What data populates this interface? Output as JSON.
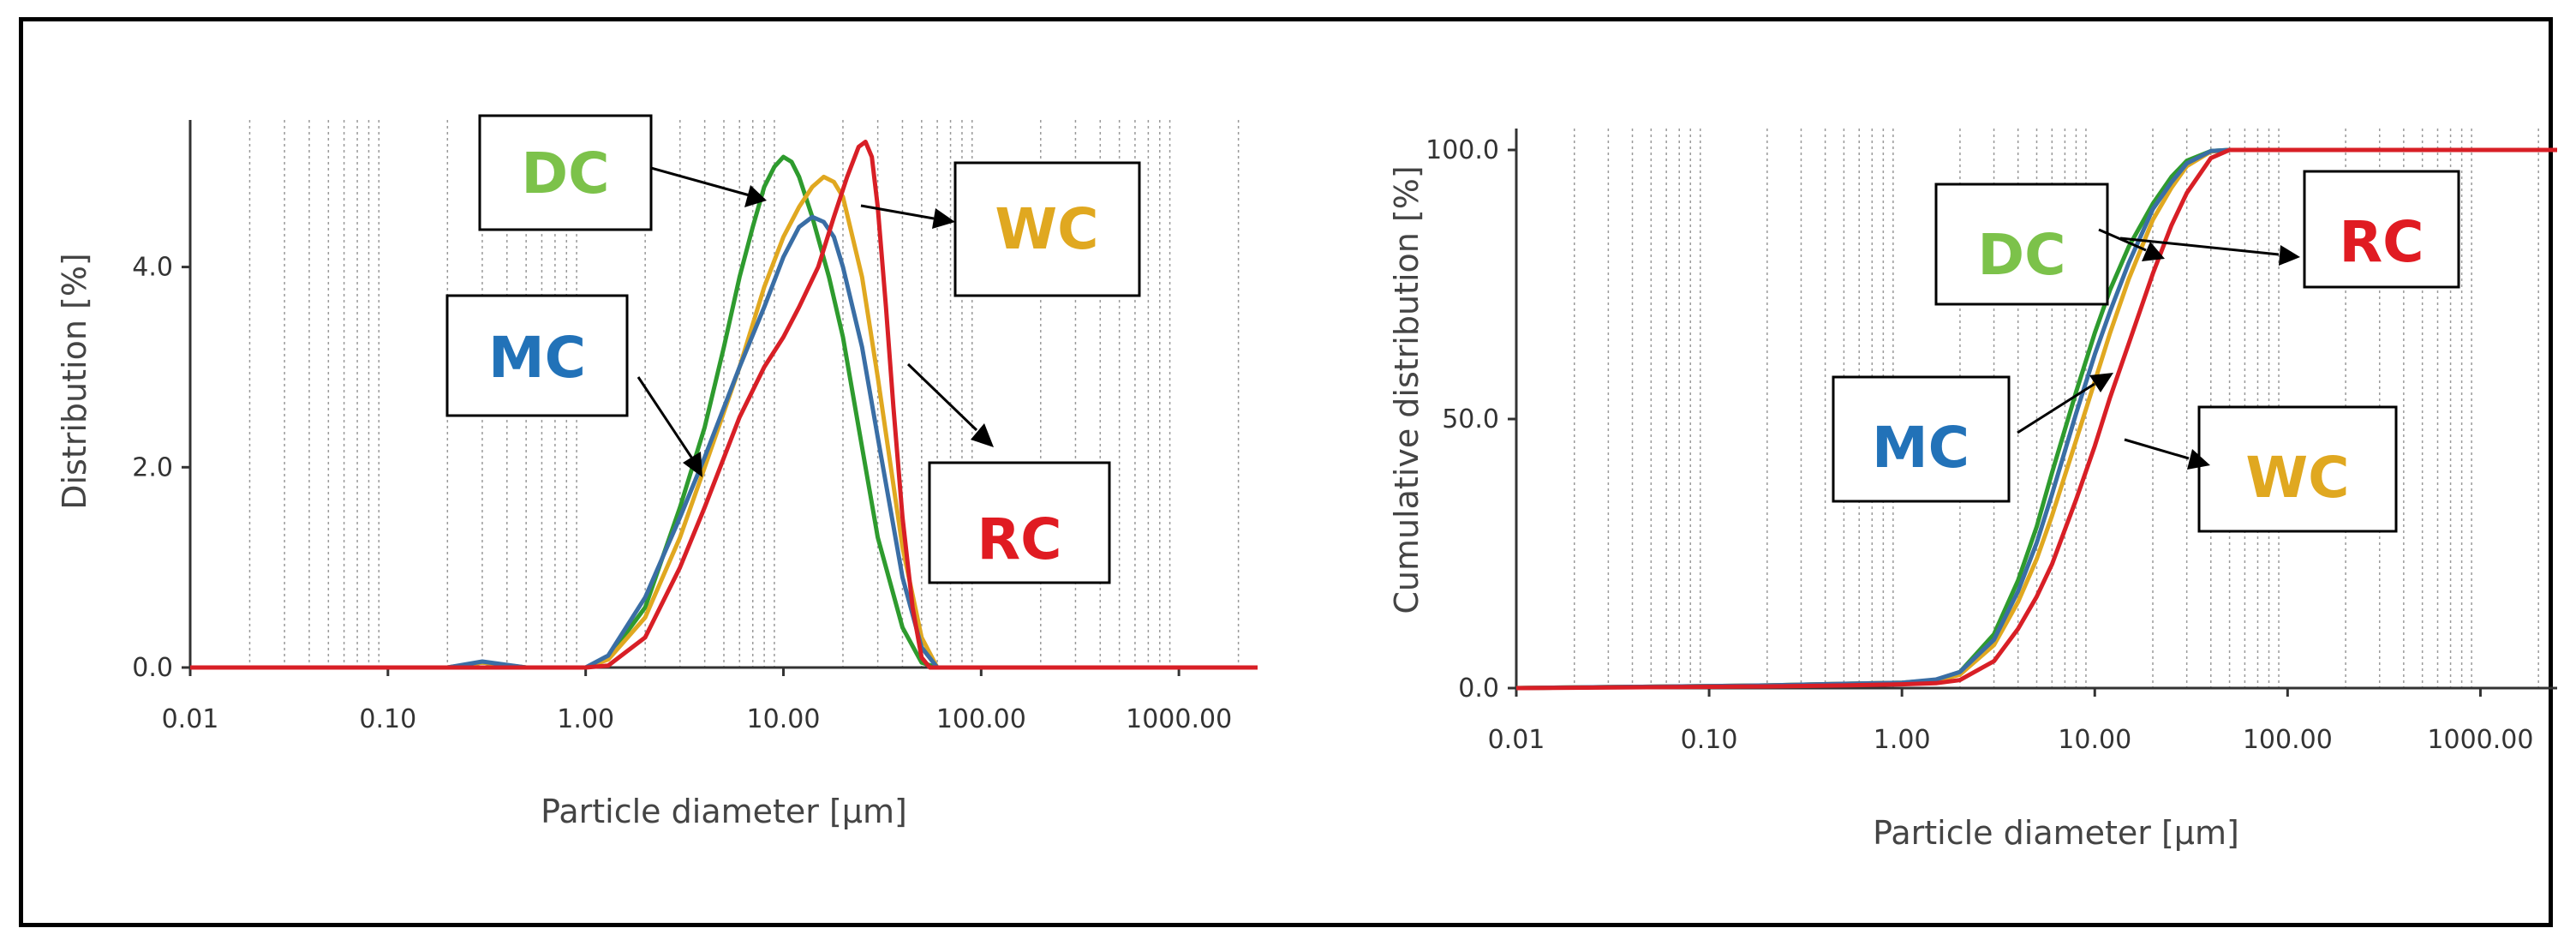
{
  "chart_data": [
    {
      "type": "line",
      "name": "distribution",
      "xscale": "log",
      "xlim": [
        0.01,
        2500
      ],
      "ylim": [
        0,
        5.4
      ],
      "xlabel": "Particle diameter [µm]",
      "ylabel": "Distribution [%]",
      "x_ticks": [
        {
          "value": 0.01,
          "label": "0.01"
        },
        {
          "value": 0.1,
          "label": "0.10"
        },
        {
          "value": 1,
          "label": "1.00"
        },
        {
          "value": 10,
          "label": "10.00"
        },
        {
          "value": 100,
          "label": "100.00"
        },
        {
          "value": 1000,
          "label": "1000.00"
        }
      ],
      "y_ticks": [
        {
          "value": 0,
          "label": "0.0"
        },
        {
          "value": 2,
          "label": "2.0"
        },
        {
          "value": 4,
          "label": "4.0"
        }
      ],
      "series": [
        {
          "name": "DC",
          "color": "#2e9b2e",
          "x": [
            0.01,
            0.2,
            0.3,
            0.5,
            1.0,
            1.3,
            2.0,
            3.0,
            4.0,
            5.0,
            6.0,
            7.0,
            8.0,
            9.0,
            10.0,
            11.0,
            12.0,
            14.0,
            17.0,
            20.0,
            25.0,
            30.0,
            40.0,
            50.0,
            60.0,
            2500
          ],
          "y": [
            0,
            0,
            0.05,
            0,
            0,
            0.1,
            0.6,
            1.6,
            2.4,
            3.2,
            3.9,
            4.4,
            4.8,
            5.0,
            5.1,
            5.05,
            4.9,
            4.5,
            3.9,
            3.3,
            2.2,
            1.3,
            0.4,
            0.05,
            0,
            0
          ]
        },
        {
          "name": "WC",
          "color": "#e0a820",
          "x": [
            0.01,
            0.2,
            0.3,
            0.5,
            1.0,
            1.3,
            2.0,
            3.0,
            4.0,
            6.0,
            8.0,
            10.0,
            12.0,
            14.0,
            16.0,
            18.0,
            20.0,
            25.0,
            30.0,
            40.0,
            50.0,
            60.0,
            2500
          ],
          "y": [
            0,
            0,
            0.05,
            0,
            0,
            0.08,
            0.5,
            1.3,
            2.0,
            3.0,
            3.8,
            4.3,
            4.6,
            4.8,
            4.9,
            4.85,
            4.7,
            3.9,
            2.9,
            1.2,
            0.3,
            0,
            0
          ]
        },
        {
          "name": "MC",
          "color": "#3a6ea5",
          "x": [
            0.01,
            0.2,
            0.3,
            0.5,
            1.0,
            1.3,
            2.0,
            3.0,
            4.0,
            6.0,
            8.0,
            10.0,
            12.0,
            14.0,
            16.0,
            18.0,
            20.0,
            25.0,
            30.0,
            40.0,
            50.0,
            60.0,
            2500
          ],
          "y": [
            0,
            0,
            0.06,
            0,
            0,
            0.12,
            0.7,
            1.5,
            2.1,
            3.0,
            3.6,
            4.1,
            4.4,
            4.5,
            4.45,
            4.3,
            4.0,
            3.2,
            2.3,
            0.9,
            0.2,
            0,
            0
          ]
        },
        {
          "name": "RC",
          "color": "#d81f26",
          "x": [
            0.01,
            1.0,
            1.3,
            2.0,
            3.0,
            4.0,
            6.0,
            8.0,
            10.0,
            12.0,
            15.0,
            18.0,
            21.0,
            24.0,
            26.0,
            28.0,
            30.0,
            33.0,
            36.0,
            40.0,
            45.0,
            50.0,
            55.0,
            2500
          ],
          "y": [
            0,
            0,
            0.02,
            0.3,
            1.0,
            1.6,
            2.5,
            3.0,
            3.3,
            3.6,
            4.0,
            4.5,
            4.9,
            5.2,
            5.25,
            5.1,
            4.6,
            3.6,
            2.6,
            1.5,
            0.6,
            0.1,
            0,
            0
          ]
        }
      ],
      "annotations": [
        {
          "label": "DC",
          "color": "#7cc24a"
        },
        {
          "label": "WC",
          "color": "#e0a820"
        },
        {
          "label": "MC",
          "color": "#2272b8"
        },
        {
          "label": "RC",
          "color": "#e01b22"
        }
      ]
    },
    {
      "type": "line",
      "name": "cumulative",
      "xscale": "log",
      "xlim": [
        0.01,
        2500
      ],
      "ylim": [
        0,
        100
      ],
      "xlabel": "Particle diameter [µm]",
      "ylabel": "Cumulative distribution [%]",
      "x_ticks": [
        {
          "value": 0.01,
          "label": "0.01"
        },
        {
          "value": 0.1,
          "label": "0.10"
        },
        {
          "value": 1,
          "label": "1.00"
        },
        {
          "value": 10,
          "label": "10.00"
        },
        {
          "value": 100,
          "label": "100.00"
        },
        {
          "value": 1000,
          "label": "1000.00"
        }
      ],
      "y_ticks": [
        {
          "value": 0,
          "label": "0.0"
        },
        {
          "value": 50,
          "label": "50.0"
        },
        {
          "value": 100,
          "label": "100.0"
        }
      ],
      "series": [
        {
          "name": "DC",
          "color": "#2e9b2e",
          "x": [
            0.01,
            0.2,
            0.5,
            1.0,
            1.5,
            2.0,
            3.0,
            4.0,
            5.0,
            6.0,
            8.0,
            10.0,
            12.0,
            15.0,
            20.0,
            25.0,
            30.0,
            40.0,
            50.0,
            2500
          ],
          "y": [
            0,
            0.5,
            0.8,
            1.0,
            1.5,
            3.0,
            10.0,
            20.0,
            30.0,
            40.0,
            55.0,
            66.0,
            74.0,
            82.0,
            90.0,
            95.0,
            98.0,
            99.8,
            100.0,
            100.0
          ]
        },
        {
          "name": "WC",
          "color": "#e0a820",
          "x": [
            0.01,
            0.2,
            0.5,
            1.0,
            1.5,
            2.0,
            3.0,
            4.0,
            5.0,
            6.0,
            8.0,
            10.0,
            12.0,
            15.0,
            20.0,
            25.0,
            30.0,
            40.0,
            50.0,
            2500
          ],
          "y": [
            0,
            0.5,
            0.8,
            1.0,
            1.3,
            2.5,
            8.0,
            16.0,
            24.0,
            32.0,
            46.0,
            57.0,
            66.0,
            76.0,
            87.0,
            93.0,
            97.0,
            99.7,
            100.0,
            100.0
          ]
        },
        {
          "name": "MC",
          "color": "#3a6ea5",
          "x": [
            0.01,
            0.2,
            0.5,
            1.0,
            1.5,
            2.0,
            3.0,
            4.0,
            5.0,
            6.0,
            8.0,
            10.0,
            12.0,
            15.0,
            20.0,
            25.0,
            30.0,
            40.0,
            50.0,
            2500
          ],
          "y": [
            0,
            0.5,
            0.8,
            1.0,
            1.6,
            3.0,
            9.0,
            18.0,
            27.0,
            36.0,
            51.0,
            62.0,
            70.0,
            79.0,
            89.0,
            94.0,
            97.5,
            99.8,
            100.0,
            100.0
          ]
        },
        {
          "name": "RC",
          "color": "#d81f26",
          "x": [
            0.01,
            0.2,
            0.5,
            1.0,
            1.5,
            2.0,
            3.0,
            4.0,
            5.0,
            6.0,
            8.0,
            10.0,
            12.0,
            15.0,
            20.0,
            25.0,
            30.0,
            40.0,
            50.0,
            2500
          ],
          "y": [
            0,
            0.3,
            0.5,
            0.7,
            0.9,
            1.5,
            5.0,
            11.0,
            17.0,
            23.0,
            35.0,
            45.0,
            54.0,
            64.0,
            77.0,
            86.0,
            92.0,
            98.5,
            100.0,
            100.0
          ]
        }
      ],
      "annotations": [
        {
          "label": "DC",
          "color": "#7cc24a"
        },
        {
          "label": "RC",
          "color": "#e01b22"
        },
        {
          "label": "MC",
          "color": "#2272b8"
        },
        {
          "label": "WC",
          "color": "#e0a820"
        }
      ]
    }
  ]
}
